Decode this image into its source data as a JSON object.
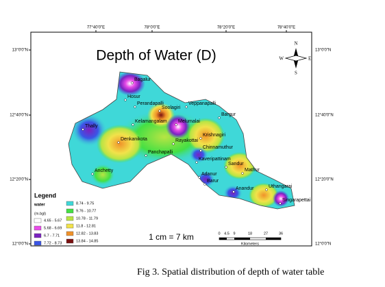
{
  "map": {
    "title": "Depth of Water (D)",
    "top_coords": [
      "77°40'0\"E",
      "78°0'0\"E",
      "78°20'0\"E",
      "78°40'0\"E"
    ],
    "left_coords": [
      "13°0'0\"N",
      "12°40'0\"N",
      "12°20'0\"N",
      "12°0'0\"N"
    ],
    "right_coords": [
      "13°0'0\"N",
      "12°40'0\"N",
      "12°20'0\"N",
      "12°0'0\"N"
    ],
    "compass": {
      "n": "N",
      "e": "E",
      "s": "S",
      "w": "W"
    },
    "places": [
      "Bagalur",
      "Hosur",
      "Perandapalli",
      "Veppanapalli",
      "Soolagiri",
      "Thally",
      "Kelamangalam",
      "Melumalai",
      "Bargur",
      "Krishnagiri",
      "Denkanikota",
      "Rayakottai",
      "Panchapalli",
      "Chinnamuthur",
      "Kaveripattinam",
      "Sandur",
      "Mathur",
      "Adanur",
      "Anchetty",
      "Barur",
      "Anandur",
      "Uthangarai",
      "Singarapettai"
    ],
    "legend": {
      "title": "Legend",
      "variable": "water",
      "unit": "(m.bgl)",
      "classes": [
        {
          "label": "4.65 - 5.67",
          "color": "#ffffff"
        },
        {
          "label": "5.68 - 6.69",
          "color": "#e84ce8"
        },
        {
          "label": "6.7 - 7.71",
          "color": "#7a22c0"
        },
        {
          "label": "7.72 - 8.73",
          "color": "#3a55e6"
        },
        {
          "label": "8.74 - 9.75",
          "color": "#3fd8d8"
        },
        {
          "label": "9.76 - 10.77",
          "color": "#44e044"
        },
        {
          "label": "10.78 - 11.79",
          "color": "#b8e444"
        },
        {
          "label": "11.8 - 12.81",
          "color": "#f2e24a"
        },
        {
          "label": "12.82 - 13.83",
          "color": "#f0922a"
        },
        {
          "label": "13.84 - 14.85",
          "color": "#7a1010"
        }
      ]
    },
    "scale_text": "1 cm = 7 km",
    "scale_ticks": [
      0,
      4.5,
      9,
      18,
      27,
      36
    ],
    "scale_unit": "Kilometers",
    "caption": "Fig 3. Spatial distribution of depth of water table"
  }
}
